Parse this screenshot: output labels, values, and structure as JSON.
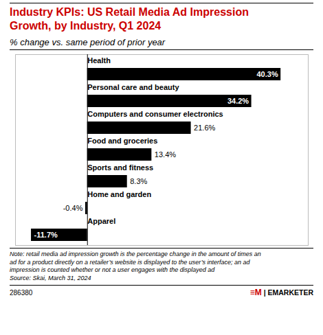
{
  "chart_data": {
    "type": "bar",
    "orientation": "horizontal",
    "title": "Industry KPIs: US Retail Media Ad Impression\nGrowth, by Industry, Q1 2024",
    "subtitle": "% change vs. same period of prior year",
    "categories": [
      "Health",
      "Personal care and beauty",
      "Computers and consumer electronics",
      "Food and groceries",
      "Sports and fitness",
      "Home and garden",
      "Apparel"
    ],
    "values": [
      40.3,
      34.2,
      21.6,
      13.4,
      8.3,
      -0.4,
      -11.7
    ],
    "value_labels": [
      "40.3%",
      "34.2%",
      "21.6%",
      "13.4%",
      "8.3%",
      "-0.4%",
      "-11.7%"
    ],
    "data_labels": true,
    "color": "#000000",
    "xlim": [
      -15,
      46
    ],
    "tick_labels": false,
    "grid": false,
    "annotations": [
      "Note: retail media ad impression growth is the percentage change in the amount of times an",
      "ad for a product directly on a retailer’s website is displayed to the user’s interface; an ad",
      "impression is counted whether or not a user engages with the displayed ad",
      "Source: Skai, March 31, 2024",
      "286380",
      "≡M",
      "| EMARKETER"
    ]
  }
}
